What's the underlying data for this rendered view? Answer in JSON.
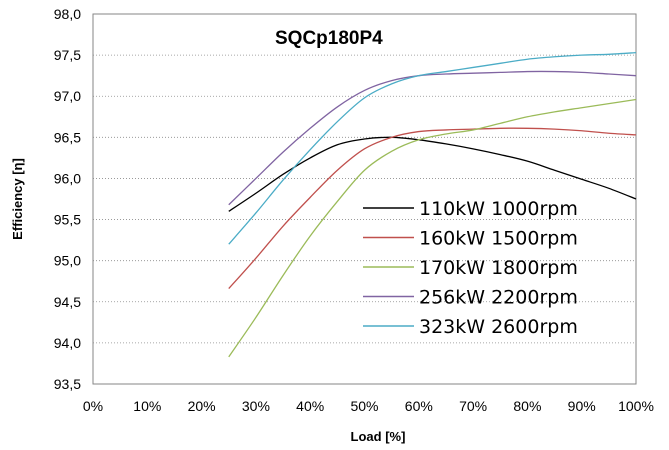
{
  "chart_data": {
    "type": "line",
    "title": "SQCp180P4",
    "xlabel": "Load [%]",
    "ylabel": "Efficiency [η]",
    "xlim": [
      0,
      100
    ],
    "ylim": [
      93.5,
      98.0
    ],
    "x_ticks": [
      "0%",
      "10%",
      "20%",
      "30%",
      "40%",
      "50%",
      "60%",
      "70%",
      "80%",
      "90%",
      "100%"
    ],
    "y_ticks": [
      "93,5",
      "94,0",
      "94,5",
      "95,0",
      "95,5",
      "96,0",
      "96,5",
      "97,0",
      "97,5",
      "98,0"
    ],
    "grid": "horizontal",
    "legend_position": "bottom-right",
    "series": [
      {
        "name": "110kW 1000rpm",
        "color": "#000000",
        "x": [
          25,
          30,
          35,
          40,
          45,
          50,
          55,
          60,
          65,
          70,
          75,
          80,
          85,
          90,
          95,
          100
        ],
        "y": [
          95.6,
          95.82,
          96.05,
          96.25,
          96.41,
          96.48,
          96.5,
          96.47,
          96.42,
          96.36,
          96.29,
          96.21,
          96.1,
          95.99,
          95.88,
          95.75
        ]
      },
      {
        "name": "160kW 1500rpm",
        "color": "#c0504d",
        "x": [
          25,
          30,
          35,
          40,
          45,
          50,
          55,
          60,
          65,
          70,
          75,
          80,
          85,
          90,
          95,
          100
        ],
        "y": [
          94.66,
          95.03,
          95.42,
          95.77,
          96.1,
          96.36,
          96.5,
          96.57,
          96.59,
          96.6,
          96.61,
          96.61,
          96.6,
          96.58,
          96.55,
          96.53
        ]
      },
      {
        "name": "170kW 1800rpm",
        "color": "#9bbb59",
        "x": [
          25,
          30,
          35,
          40,
          45,
          50,
          55,
          60,
          65,
          70,
          75,
          80,
          85,
          90,
          95,
          100
        ],
        "y": [
          93.83,
          94.31,
          94.82,
          95.3,
          95.72,
          96.1,
          96.33,
          96.47,
          96.54,
          96.59,
          96.67,
          96.75,
          96.81,
          96.86,
          96.91,
          96.96
        ]
      },
      {
        "name": "256kW 2200rpm",
        "color": "#8064a2",
        "x": [
          25,
          30,
          35,
          40,
          45,
          50,
          55,
          60,
          65,
          70,
          75,
          80,
          85,
          90,
          95,
          100
        ],
        "y": [
          95.68,
          96.0,
          96.32,
          96.61,
          96.87,
          97.07,
          97.19,
          97.25,
          97.27,
          97.28,
          97.29,
          97.3,
          97.3,
          97.29,
          97.27,
          97.25
        ]
      },
      {
        "name": "323kW 2600rpm",
        "color": "#4bacc6",
        "x": [
          25,
          30,
          35,
          40,
          45,
          50,
          55,
          60,
          65,
          70,
          75,
          80,
          85,
          90,
          95,
          100
        ],
        "y": [
          95.2,
          95.58,
          95.98,
          96.35,
          96.69,
          96.98,
          97.15,
          97.25,
          97.3,
          97.35,
          97.4,
          97.45,
          97.48,
          97.5,
          97.51,
          97.53
        ]
      }
    ]
  }
}
